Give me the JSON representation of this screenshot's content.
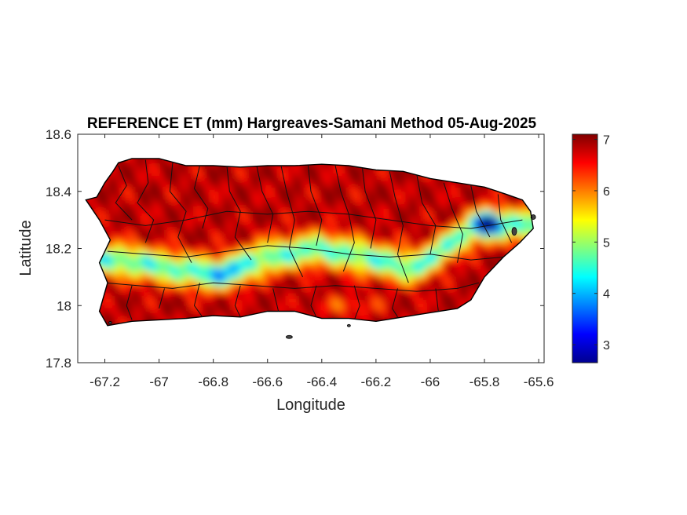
{
  "title": "REFERENCE ET (mm) Hargreaves-Samani Method  05-Aug-2025",
  "xlabel": "Longitude",
  "ylabel": "Latitude",
  "map": {
    "region": "Puerto Rico",
    "xlim": [
      -67.3,
      -65.58
    ],
    "ylim": [
      17.8,
      18.6
    ],
    "x_ticks": [
      "-67.2",
      "-67",
      "-66.8",
      "-66.6",
      "-66.4",
      "-66.2",
      "-66",
      "-65.8",
      "-65.6"
    ],
    "x_tick_values": [
      -67.2,
      -67.0,
      -66.8,
      -66.6,
      -66.4,
      -66.2,
      -66.0,
      -65.8,
      -65.6
    ],
    "y_ticks": [
      "18.6",
      "18.4",
      "18.2",
      "18",
      "17.8"
    ],
    "y_tick_values": [
      18.6,
      18.4,
      18.2,
      18.0,
      17.8
    ],
    "grid": false,
    "boundaries": "municipality outlines in black"
  },
  "colorbar": {
    "colormap": "jet",
    "range": [
      2.65,
      7.1
    ],
    "ticks": [
      "7",
      "6",
      "5",
      "4",
      "3"
    ],
    "tick_values": [
      7,
      6,
      5,
      4,
      3
    ],
    "units": "mm"
  },
  "colors": {
    "high": "#b40000",
    "mid": "#ffff00",
    "low": "#00008f",
    "outline": "#000000"
  }
}
